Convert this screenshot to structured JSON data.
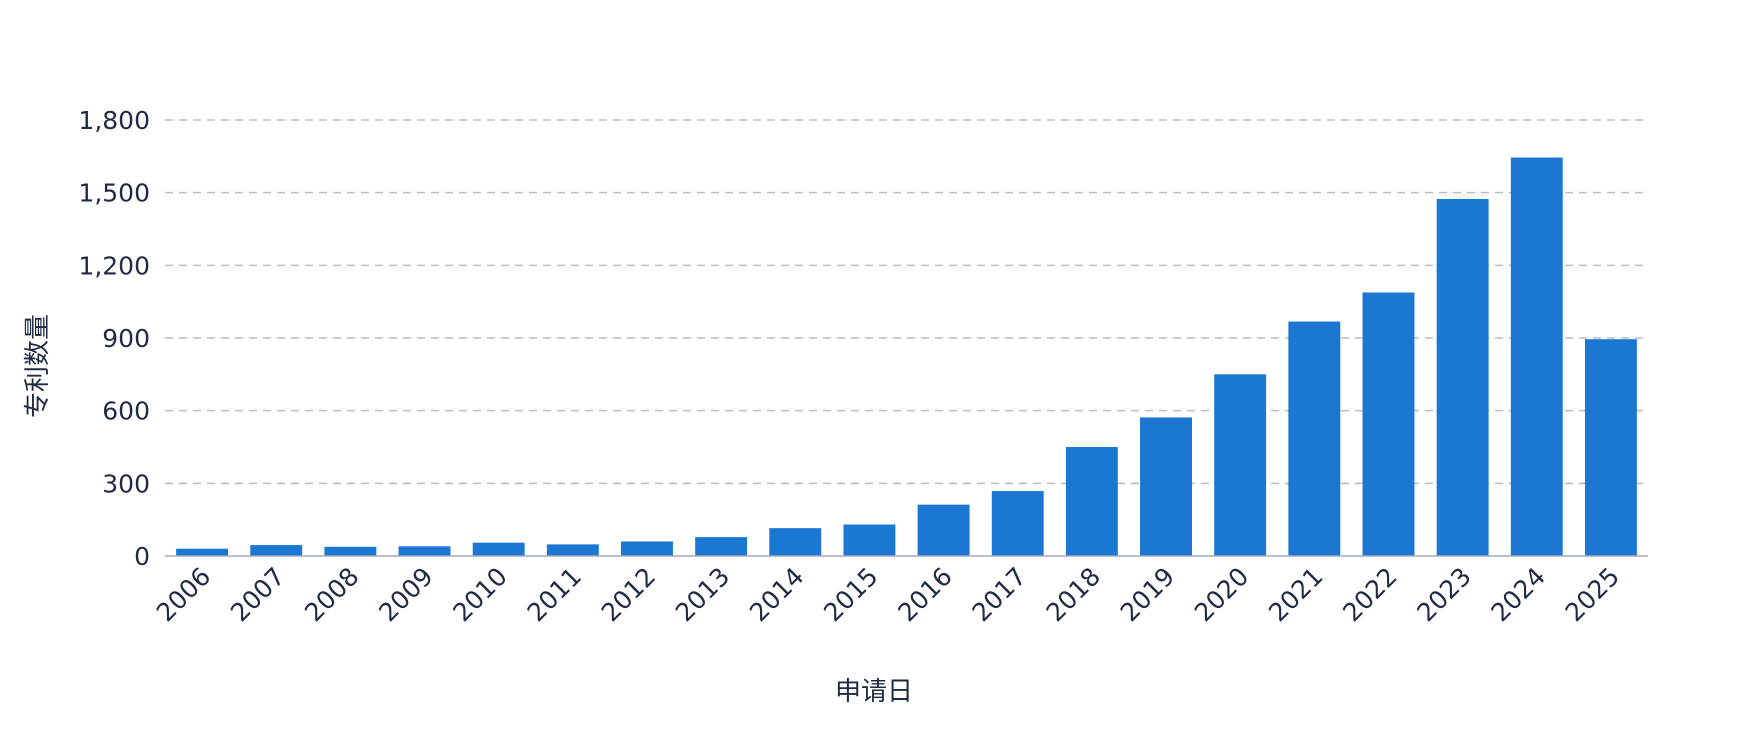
{
  "chart_data": {
    "type": "bar",
    "categories": [
      "2006",
      "2007",
      "2008",
      "2009",
      "2010",
      "2011",
      "2012",
      "2013",
      "2014",
      "2015",
      "2016",
      "2017",
      "2018",
      "2019",
      "2020",
      "2021",
      "2022",
      "2023",
      "2024",
      "2025"
    ],
    "values": [
      30,
      45,
      38,
      40,
      55,
      48,
      60,
      78,
      115,
      130,
      212,
      268,
      450,
      572,
      750,
      968,
      1088,
      1474,
      1645,
      895
    ],
    "title": "",
    "xlabel": "申请日",
    "ylabel": "专利数量",
    "ylim": [
      0,
      1800
    ],
    "yticks": [
      0,
      300,
      600,
      900,
      1200,
      1500,
      1800
    ],
    "ytick_labels": [
      "0",
      "300",
      "600",
      "900",
      "1,200",
      "1,500",
      "1,800"
    ],
    "grid": true,
    "colors": {
      "bar": "#1b77d2",
      "grid": "#b8bccb",
      "axis": "#a3a9bd",
      "text": "#1f2a44"
    }
  }
}
